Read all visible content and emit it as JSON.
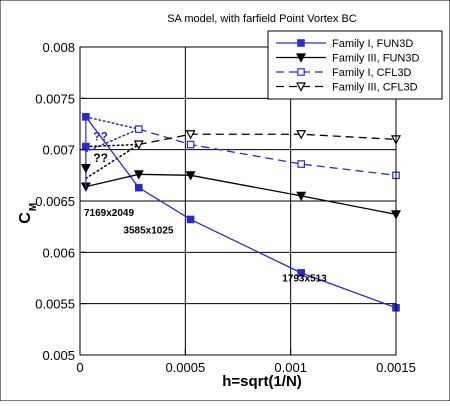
{
  "chart_data": {
    "type": "line",
    "title": "SA model, with farfield Point Vortex BC",
    "xlabel": "h=sqrt(1/N)",
    "ylabel": "C",
    "ylabel_sub": "M",
    "xlim": [
      0,
      0.0015
    ],
    "ylim": [
      0.005,
      0.008
    ],
    "xticks": [
      0,
      0.0005,
      0.001,
      0.0015
    ],
    "xtick_labels": [
      "0",
      "0.0005",
      "0.001",
      "0.0015"
    ],
    "yticks": [
      0.005,
      0.0055,
      0.006,
      0.0065,
      0.007,
      0.0075,
      0.008
    ],
    "ytick_labels": [
      "0.005",
      "0.0055",
      "0.006",
      "0.0065",
      "0.007",
      "0.0075",
      "0.008"
    ],
    "grid": true,
    "legend_position": "top-right",
    "series": [
      {
        "name": "Family I, FUN3D",
        "color": "#2929d6",
        "dash": "solid",
        "marker": "filled-square",
        "x": [
          2.79e-05,
          0.000279,
          0.000525,
          0.00105,
          0.0015
        ],
        "y": [
          0.00732,
          0.00663,
          0.00632,
          0.0058,
          0.00546
        ]
      },
      {
        "name": "Family III, FUN3D",
        "color": "#000000",
        "dash": "solid",
        "marker": "filled-triangle-down",
        "x": [
          2.79e-05,
          0.000279,
          0.000525,
          0.00105,
          0.0015
        ],
        "y": [
          0.00664,
          0.00676,
          0.00675,
          0.00655,
          0.00637
        ]
      },
      {
        "name": "Family I, CFL3D",
        "color": "#2929d6",
        "dash": "dashed",
        "marker": "open-square",
        "x": [
          0.000279,
          0.000525,
          0.00105,
          0.0015
        ],
        "y": [
          0.0072,
          0.00705,
          0.00686,
          0.00675
        ]
      },
      {
        "name": "Family III, CFL3D",
        "color": "#000000",
        "dash": "dashed",
        "marker": "open-triangle-down",
        "x": [
          0.000279,
          0.000525,
          0.00105,
          0.0015
        ],
        "y": [
          0.00705,
          0.00715,
          0.00715,
          0.0071
        ]
      }
    ],
    "extra_markers": [
      {
        "x": 2.79e-05,
        "y": 0.00703,
        "marker": "filled-square",
        "color": "#2929d6"
      },
      {
        "x": 2.79e-05,
        "y": 0.00682,
        "marker": "filled-triangle-down",
        "color": "#000000"
      }
    ],
    "extrapolation_lines": [
      {
        "color": "#2929d6",
        "x": [
          2.79e-05,
          0.000279
        ],
        "y": [
          0.00732,
          0.0072
        ]
      },
      {
        "color": "#2929d6",
        "x": [
          2.79e-05,
          0.000279
        ],
        "y": [
          0.00698,
          0.0072
        ]
      },
      {
        "color": "#000000",
        "x": [
          2.79e-05,
          0.000279
        ],
        "y": [
          0.00703,
          0.00705
        ]
      },
      {
        "color": "#000000",
        "x": [
          2.79e-05,
          0.000279
        ],
        "y": [
          0.00672,
          0.00705
        ]
      }
    ],
    "annotations": [
      {
        "text": "??",
        "x": 6.3e-05,
        "y": 0.00709,
        "color": "#2929d6",
        "bold": true,
        "size": 12
      },
      {
        "text": "??",
        "x": 6.3e-05,
        "y": 0.00688,
        "color": "#000000",
        "bold": true,
        "size": 12
      },
      {
        "text": "7169x2049",
        "x": 0.0,
        "y": 0.006355,
        "color": "#000000",
        "bold": true,
        "size": 10
      },
      {
        "text": "3585x1025",
        "x": 0.000206,
        "y": 0.006185,
        "color": "#000000",
        "bold": true,
        "size": 10
      },
      {
        "text": "1793x513",
        "x": 0.00096,
        "y": 0.005715,
        "color": "#000000",
        "bold": true,
        "size": 10
      }
    ]
  }
}
